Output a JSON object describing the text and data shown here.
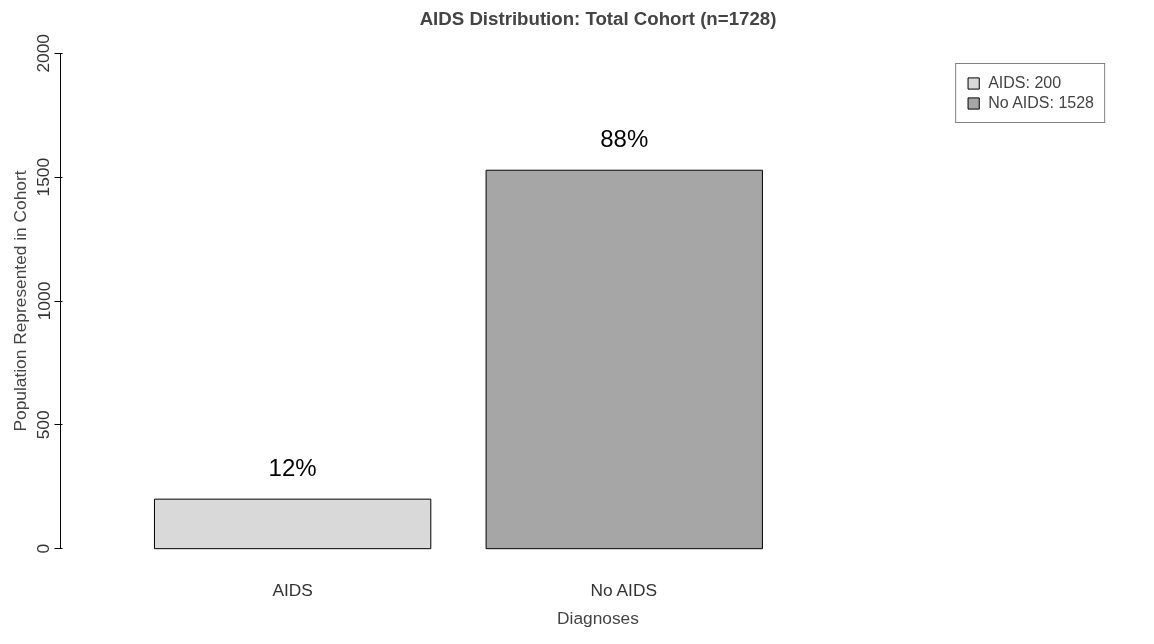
{
  "chart_data": {
    "type": "bar",
    "title": "AIDS Distribution: Total Cohort (n=1728)",
    "xlabel": "Diagnoses",
    "ylabel": "Population Represented in Cohort",
    "categories": [
      "AIDS",
      "No AIDS"
    ],
    "series": [
      {
        "name": "AIDS: 200",
        "color": "#d9d9d9",
        "values": [
          200,
          null
        ]
      },
      {
        "name": "No AIDS: 1528",
        "color": "#a6a6a6",
        "values": [
          null,
          1528
        ]
      }
    ],
    "annotations": [
      {
        "text": "12%",
        "x": "AIDS",
        "y": 200
      },
      {
        "text": "88%",
        "x": "No AIDS",
        "y": 1528
      }
    ],
    "ylim": [
      0,
      2000
    ],
    "yticks": [
      0,
      500,
      1000,
      1500,
      2000
    ],
    "grid": false,
    "legend": "top right"
  }
}
